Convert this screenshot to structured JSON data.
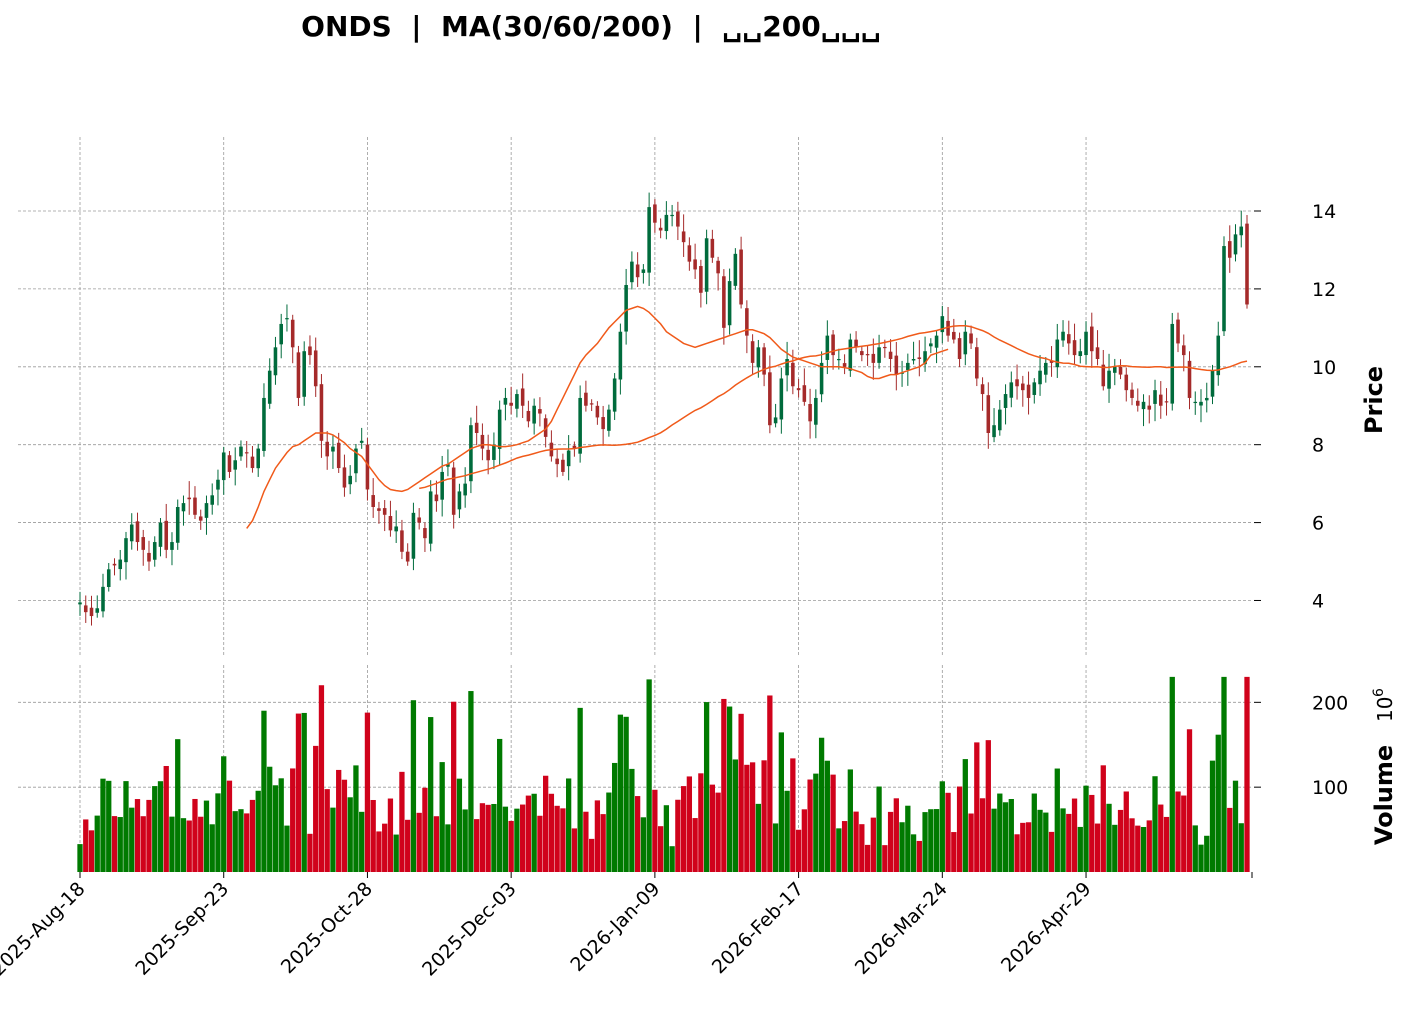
{
  "chart_data": {
    "type": "candlestick",
    "title": "ONDS  |  MA(30/60/200)  |  ␣␣200␣␣␣",
    "price_panel": {
      "ylabel": "Price",
      "yticks": [
        4,
        6,
        8,
        10,
        12,
        14
      ],
      "ylim": [
        2.6,
        15.9
      ]
    },
    "volume_panel": {
      "ylabel": "Volume",
      "exponent_label": "10",
      "exponent_power": "6",
      "yticks": [
        100,
        200
      ],
      "ylim": [
        0,
        244
      ]
    },
    "xticks": [
      {
        "label": "2025-Aug-18",
        "index": 0
      },
      {
        "label": "2025-Sep-23",
        "index": 25
      },
      {
        "label": "2025-Oct-28",
        "index": 50
      },
      {
        "label": "2025-Dec-03",
        "index": 75
      },
      {
        "label": "2026-Jan-09",
        "index": 100
      },
      {
        "label": "2026-Feb-17",
        "index": 125
      },
      {
        "label": "2026-Mar-24",
        "index": 150
      },
      {
        "label": "2026-Apr-29",
        "index": 175
      }
    ],
    "colors": {
      "up": "#006b3c",
      "down": "#a52a2a",
      "vol_up": "#007a00",
      "vol_down": "#d0021b",
      "ma": "#f05a1a",
      "grid": "#9a9a9a"
    },
    "ohlc_close": [
      3.95,
      3.7,
      3.6,
      3.8,
      4.35,
      4.8,
      4.9,
      5.05,
      5.6,
      5.95,
      5.5,
      5.3,
      5.0,
      5.5,
      6.0,
      5.3,
      5.5,
      6.4,
      6.5,
      6.6,
      6.2,
      6.05,
      6.5,
      6.7,
      7.1,
      7.8,
      7.3,
      7.6,
      7.95,
      7.8,
      7.4,
      7.9,
      9.2,
      9.9,
      10.5,
      11.1,
      11.25,
      10.5,
      9.2,
      10.4,
      10.3,
      9.5,
      8.1,
      7.7,
      7.95,
      7.4,
      6.9,
      7.2,
      7.9,
      8.1,
      6.85,
      6.4,
      6.3,
      6.2,
      5.8,
      5.9,
      5.25,
      5.0,
      6.25,
      6.0,
      5.6,
      6.8,
      6.55,
      7.3,
      7.5,
      6.2,
      6.8,
      7.0,
      8.5,
      8.3,
      7.9,
      7.6,
      8.0,
      8.9,
      9.2,
      9.0,
      9.3,
      9.0,
      8.6,
      9.0,
      8.8,
      8.2,
      7.7,
      7.5,
      7.3,
      7.85,
      7.9,
      9.2,
      9.0,
      9.05,
      8.7,
      8.4,
      8.9,
      9.7,
      10.9,
      12.1,
      12.7,
      12.3,
      12.5,
      14.1,
      13.7,
      13.5,
      13.9,
      13.9,
      13.6,
      13.2,
      12.7,
      12.5,
      11.9,
      13.3,
      12.8,
      12.4,
      11.0,
      12.2,
      12.9,
      11.6,
      10.8,
      10.1,
      10.5,
      9.8,
      8.5,
      8.7,
      9.7,
      10.2,
      9.5,
      9.4,
      9.1,
      8.6,
      9.2,
      10.1,
      10.8,
      10.3,
      10.2,
      10.0,
      10.7,
      10.5,
      10.3,
      10.3,
      10.1,
      10.5,
      10.5,
      10.2,
      9.8,
      9.85,
      10.1,
      10.2,
      10.2,
      10.4,
      10.6,
      10.8,
      11.3,
      10.8,
      10.7,
      10.2,
      10.9,
      10.6,
      9.7,
      9.3,
      8.3,
      8.5,
      8.9,
      9.3,
      9.6,
      9.5,
      9.4,
      9.2,
      9.6,
      9.9,
      10.1,
      10.1,
      10.7,
      10.9,
      10.6,
      10.3,
      10.4,
      10.9,
      10.4,
      10.2,
      9.5,
      9.9,
      10.0,
      9.8,
      9.4,
      9.2,
      9.0,
      9.1,
      8.9,
      9.4,
      9.0,
      9.1,
      11.1,
      10.6,
      10.3,
      9.2,
      9.1,
      9.1,
      9.2,
      9.9,
      10.8,
      13.1,
      12.8,
      13.4,
      13.6,
      11.6
    ],
    "ma_short": [
      null,
      null,
      null,
      null,
      null,
      null,
      null,
      null,
      null,
      null,
      null,
      null,
      null,
      null,
      null,
      null,
      null,
      null,
      null,
      null,
      null,
      null,
      null,
      null,
      null,
      null,
      null,
      null,
      null,
      5.85,
      6.05,
      6.4,
      6.8,
      7.1,
      7.4,
      7.6,
      7.8,
      7.95,
      8.0,
      8.1,
      8.2,
      8.3,
      8.3,
      8.3,
      8.25,
      8.15,
      8.05,
      7.9,
      7.8,
      7.7,
      7.5,
      7.3,
      7.1,
      6.95,
      6.85,
      6.82,
      6.8,
      6.85,
      6.95,
      7.05,
      7.15,
      7.25,
      7.35,
      7.45,
      7.5,
      7.6,
      7.7,
      7.8,
      7.9,
      7.95,
      8.0,
      8.0,
      7.98,
      7.95,
      7.95,
      7.97,
      8.0,
      8.05,
      8.1,
      8.2,
      8.3,
      8.4,
      8.6,
      8.9,
      9.2,
      9.5,
      9.8,
      10.1,
      10.3,
      10.45,
      10.6,
      10.8,
      11.0,
      11.15,
      11.3,
      11.45,
      11.5,
      11.55,
      11.5,
      11.4,
      11.25,
      11.1,
      10.9,
      10.8,
      10.7,
      10.6,
      10.55,
      10.5,
      10.55,
      10.6,
      10.65,
      10.7,
      10.75,
      10.8,
      10.85,
      10.9,
      10.95,
      10.95,
      10.9,
      10.85,
      10.75,
      10.6,
      10.45,
      10.35,
      10.25,
      10.2,
      10.15,
      10.1,
      10.05,
      10.0,
      10.0,
      10.0,
      10.0,
      9.98,
      9.95,
      9.9,
      9.85,
      9.75,
      9.7,
      9.7,
      9.75,
      9.8,
      9.8,
      9.85,
      9.9,
      9.95,
      10.0,
      10.1,
      10.3,
      10.35,
      10.4,
      10.45
    ]
  }
}
